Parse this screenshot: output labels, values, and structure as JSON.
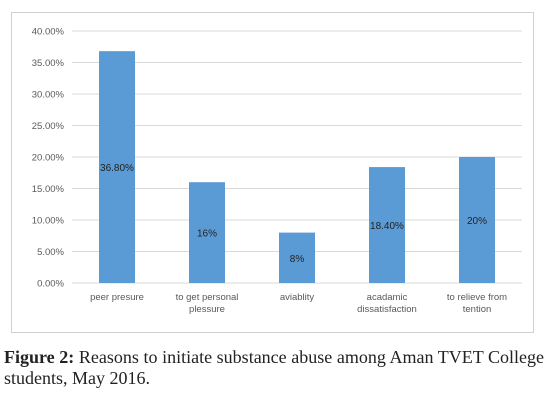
{
  "figure": {
    "label": "Figure 2:",
    "caption": "Reasons to initiate substance abuse among Aman TVET College students, May 2016."
  },
  "chart_data": {
    "type": "bar",
    "categories": [
      [
        "peer presure"
      ],
      [
        "to get personal",
        "plessure"
      ],
      [
        "aviablity"
      ],
      [
        "acadamic",
        "dissatisfaction"
      ],
      [
        "to relieve from",
        "tention"
      ]
    ],
    "values": [
      36.8,
      16,
      8,
      18.4,
      20
    ],
    "data_labels": [
      "36.80%",
      "16%",
      "8%",
      "18.40%",
      "20%"
    ],
    "ylim": [
      0,
      40
    ],
    "yticks": [
      "0.00%",
      "5.00%",
      "10.00%",
      "15.00%",
      "20.00%",
      "25.00%",
      "30.00%",
      "35.00%",
      "40.00%"
    ],
    "grid": true,
    "legend": "none",
    "colors": {
      "bar": "#5b9bd5",
      "grid": "#d9d9d9",
      "axis_text": "#595959",
      "label_text": "#222222",
      "spell_underline": "#e03030"
    }
  }
}
